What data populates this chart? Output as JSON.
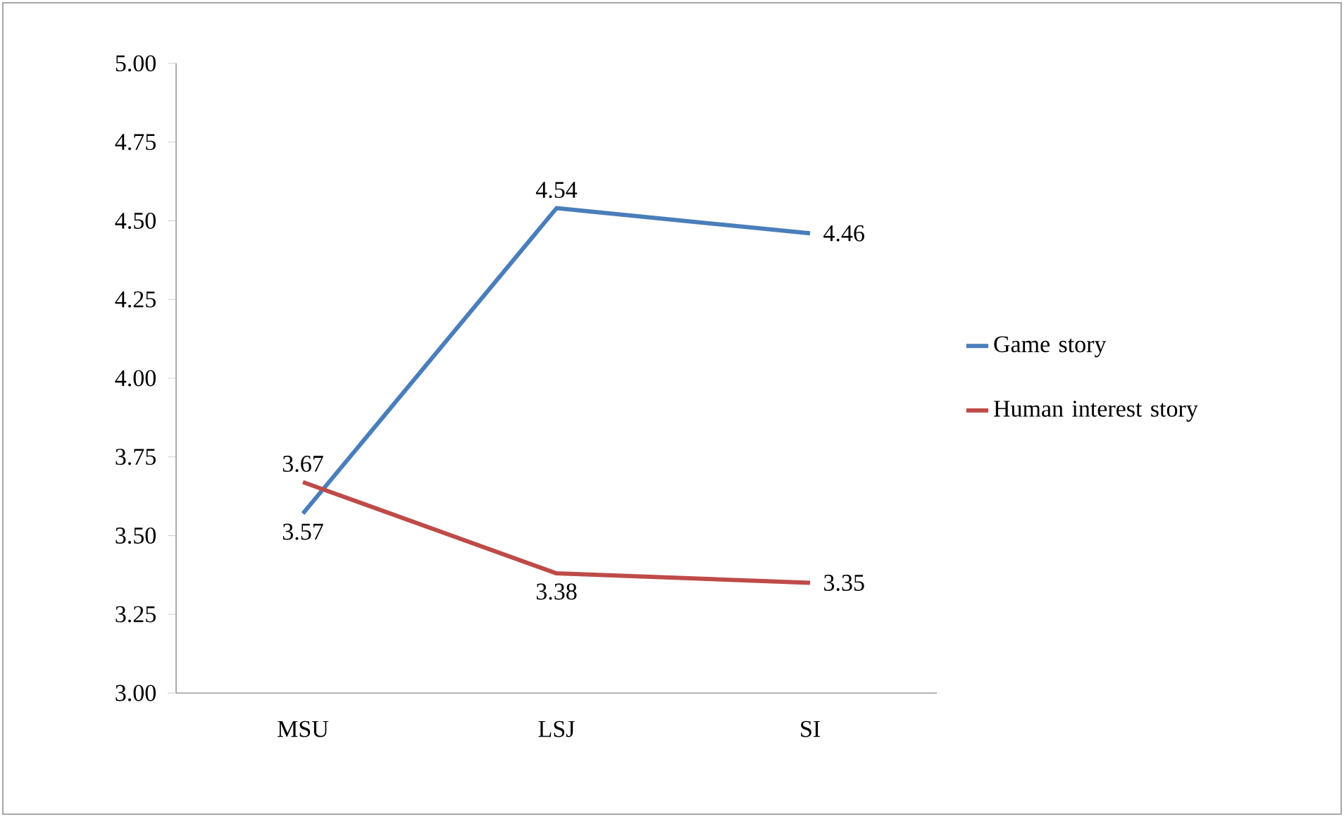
{
  "chart_data": {
    "type": "line",
    "categories": [
      "MSU",
      "LSJ",
      "SI"
    ],
    "series": [
      {
        "name": "Game story",
        "color": "#4a7ebb",
        "values": [
          3.57,
          4.54,
          4.46
        ]
      },
      {
        "name": "Human interest story",
        "color": "#be4b48",
        "values": [
          3.67,
          3.38,
          3.35
        ]
      }
    ],
    "ylim": [
      3.0,
      5.0
    ],
    "yticks": [
      {
        "value": 3.0,
        "label": "3.00"
      },
      {
        "value": 3.25,
        "label": "3.25"
      },
      {
        "value": 3.5,
        "label": "3.50"
      },
      {
        "value": 3.75,
        "label": "3.75"
      },
      {
        "value": 4.0,
        "label": "4.00"
      },
      {
        "value": 4.25,
        "label": "4.25"
      },
      {
        "value": 4.5,
        "label": "4.50"
      },
      {
        "value": 4.75,
        "label": "4.75"
      },
      {
        "value": 5.0,
        "label": "5.00"
      }
    ],
    "data_labels": true,
    "grid": false,
    "legend": "right",
    "marker": "none",
    "line_style": "solid"
  }
}
